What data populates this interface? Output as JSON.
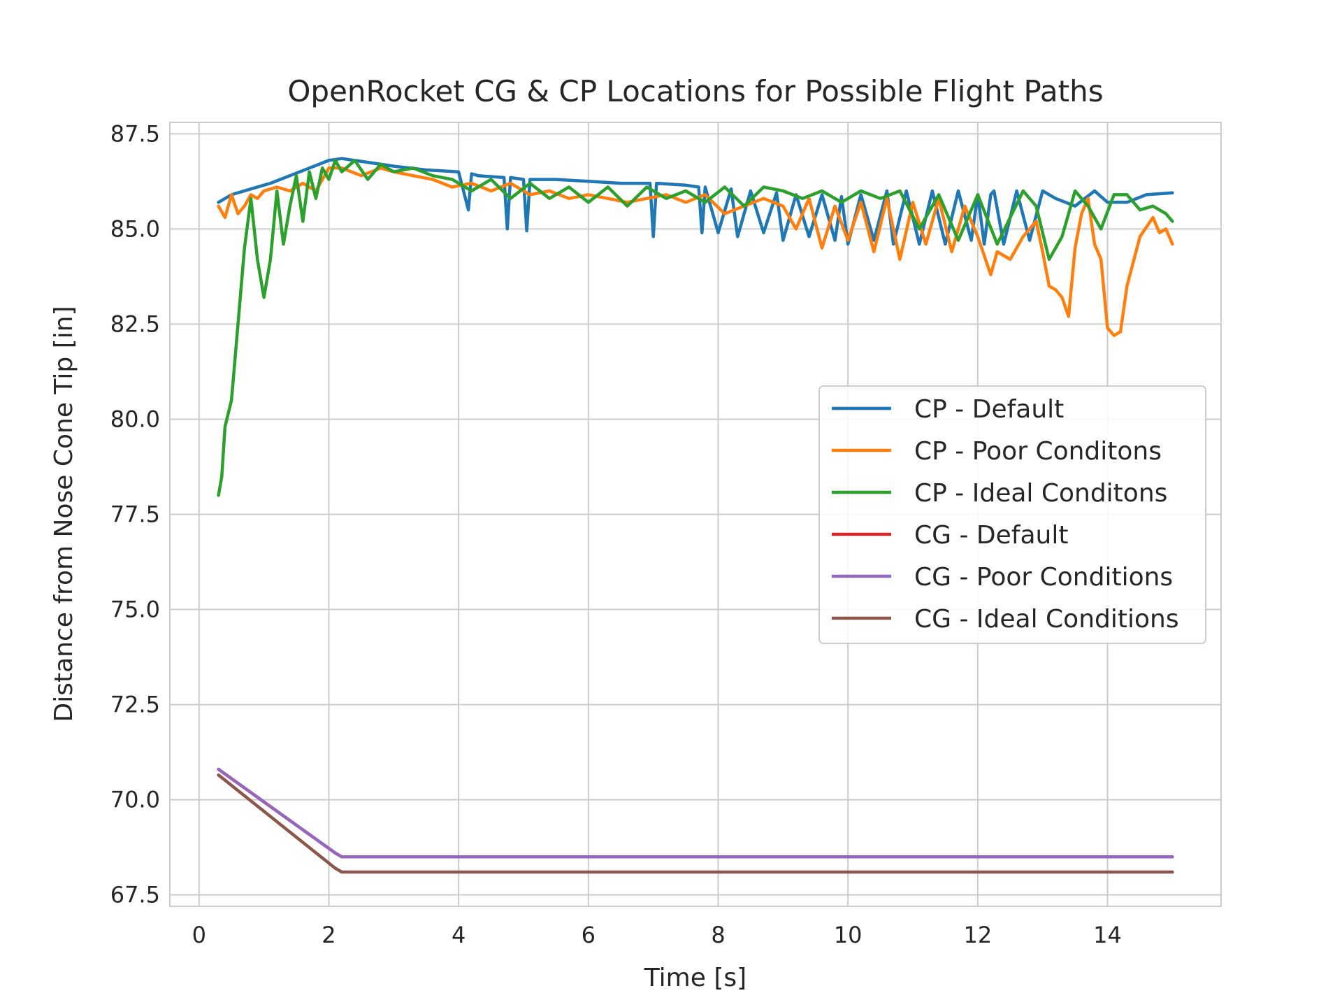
{
  "chart_data": {
    "type": "line",
    "title": "OpenRocket CG & CP Locations for Possible Flight Paths",
    "xlabel": "Time [s]",
    "ylabel": "Distance from Nose Cone Tip [in]",
    "xlim": [
      -0.45,
      15.75
    ],
    "ylim": [
      67.2,
      87.8
    ],
    "xticks": [
      0,
      2,
      4,
      6,
      8,
      10,
      12,
      14
    ],
    "yticks": [
      67.5,
      70.0,
      72.5,
      75.0,
      77.5,
      80.0,
      82.5,
      85.0,
      87.5
    ],
    "xtick_labels": [
      "0",
      "2",
      "4",
      "6",
      "8",
      "10",
      "12",
      "14"
    ],
    "ytick_labels": [
      "67.5",
      "70.0",
      "72.5",
      "75.0",
      "77.5",
      "80.0",
      "82.5",
      "85.0",
      "87.5"
    ],
    "grid": true,
    "legend_position": "center-right",
    "series": [
      {
        "name": "CP - Default",
        "color": "#1f77b4",
        "x": [
          0.3,
          0.5,
          0.8,
          1.1,
          1.4,
          1.7,
          2.0,
          2.2,
          2.6,
          3.0,
          3.5,
          4.0,
          4.15,
          4.2,
          4.3,
          4.7,
          4.75,
          4.8,
          5.0,
          5.05,
          5.1,
          5.5,
          6.0,
          6.5,
          6.95,
          7.0,
          7.05,
          7.5,
          7.7,
          7.75,
          7.8,
          8.0,
          8.2,
          8.3,
          8.5,
          8.7,
          8.9,
          9.0,
          9.2,
          9.4,
          9.6,
          9.8,
          9.9,
          10.0,
          10.2,
          10.4,
          10.6,
          10.7,
          10.9,
          11.1,
          11.3,
          11.5,
          11.7,
          11.9,
          12.0,
          12.1,
          12.2,
          12.25,
          12.4,
          12.6,
          12.8,
          13.0,
          13.2,
          13.5,
          13.8,
          14.0,
          14.3,
          14.6,
          15.0
        ],
        "y": [
          85.7,
          85.9,
          86.05,
          86.2,
          86.4,
          86.6,
          86.8,
          86.85,
          86.75,
          86.65,
          86.55,
          86.5,
          85.5,
          86.45,
          86.4,
          86.35,
          85.0,
          86.35,
          86.3,
          84.95,
          86.3,
          86.3,
          86.25,
          86.2,
          86.2,
          84.8,
          86.2,
          86.15,
          86.1,
          84.9,
          86.1,
          84.9,
          86.05,
          84.8,
          86.0,
          84.9,
          85.95,
          84.7,
          85.9,
          84.8,
          85.9,
          84.7,
          85.85,
          84.6,
          85.9,
          84.7,
          86.0,
          84.6,
          86.0,
          84.6,
          86.0,
          84.6,
          86.0,
          84.7,
          85.9,
          84.6,
          85.9,
          86.0,
          84.6,
          86.0,
          84.7,
          86.0,
          85.8,
          85.6,
          86.0,
          85.7,
          85.7,
          85.9,
          85.95
        ]
      },
      {
        "name": "CP - Poor Conditons",
        "color": "#ff7f0e",
        "x": [
          0.3,
          0.4,
          0.5,
          0.6,
          0.7,
          0.8,
          0.9,
          1.0,
          1.2,
          1.4,
          1.6,
          1.8,
          2.0,
          2.2,
          2.5,
          2.8,
          3.0,
          3.3,
          3.6,
          3.9,
          4.2,
          4.5,
          4.8,
          5.1,
          5.4,
          5.7,
          6.0,
          6.3,
          6.6,
          6.9,
          7.2,
          7.5,
          7.8,
          8.1,
          8.4,
          8.7,
          9.0,
          9.2,
          9.4,
          9.6,
          9.8,
          10.0,
          10.2,
          10.4,
          10.6,
          10.8,
          11.0,
          11.2,
          11.4,
          11.6,
          11.8,
          12.0,
          12.2,
          12.3,
          12.5,
          12.7,
          12.9,
          13.0,
          13.1,
          13.2,
          13.3,
          13.4,
          13.5,
          13.6,
          13.7,
          13.8,
          13.9,
          14.0,
          14.1,
          14.2,
          14.3,
          14.5,
          14.7,
          14.8,
          14.9,
          15.0
        ],
        "y": [
          85.6,
          85.3,
          85.9,
          85.4,
          85.6,
          85.9,
          85.8,
          86.0,
          86.1,
          86.0,
          86.2,
          86.0,
          86.6,
          86.6,
          86.4,
          86.6,
          86.5,
          86.4,
          86.3,
          86.1,
          86.2,
          86.0,
          86.2,
          85.9,
          86.0,
          85.8,
          85.9,
          85.8,
          85.7,
          85.8,
          85.9,
          85.7,
          85.9,
          85.4,
          85.6,
          85.8,
          85.6,
          85.0,
          85.8,
          84.5,
          85.6,
          84.7,
          85.7,
          84.4,
          85.8,
          84.2,
          85.7,
          84.6,
          85.8,
          84.4,
          85.6,
          84.8,
          83.8,
          84.4,
          84.2,
          84.8,
          85.2,
          84.4,
          83.5,
          83.4,
          83.2,
          82.7,
          84.5,
          85.4,
          85.8,
          84.6,
          84.2,
          82.4,
          82.2,
          82.3,
          83.5,
          84.8,
          85.3,
          84.9,
          85.0,
          84.6
        ]
      },
      {
        "name": "CP - Ideal Conditons",
        "color": "#2ca02c",
        "x": [
          0.3,
          0.35,
          0.4,
          0.5,
          0.6,
          0.7,
          0.8,
          0.9,
          1.0,
          1.1,
          1.2,
          1.3,
          1.4,
          1.5,
          1.6,
          1.7,
          1.8,
          1.9,
          2.0,
          2.1,
          2.2,
          2.4,
          2.6,
          2.8,
          3.0,
          3.3,
          3.6,
          3.9,
          4.2,
          4.5,
          4.8,
          5.1,
          5.4,
          5.7,
          6.0,
          6.3,
          6.6,
          6.9,
          7.2,
          7.5,
          7.8,
          8.1,
          8.4,
          8.7,
          9.0,
          9.3,
          9.6,
          9.9,
          10.2,
          10.5,
          10.8,
          11.1,
          11.4,
          11.7,
          12.0,
          12.3,
          12.5,
          12.7,
          12.9,
          13.1,
          13.3,
          13.5,
          13.7,
          13.9,
          14.1,
          14.3,
          14.5,
          14.7,
          14.9,
          15.0
        ],
        "y": [
          78.0,
          78.5,
          79.8,
          80.5,
          82.5,
          84.5,
          85.8,
          84.2,
          83.2,
          84.2,
          86.0,
          84.6,
          85.6,
          86.4,
          85.2,
          86.5,
          85.8,
          86.6,
          86.3,
          86.8,
          86.5,
          86.8,
          86.3,
          86.7,
          86.5,
          86.6,
          86.4,
          86.3,
          86.0,
          86.3,
          85.8,
          86.2,
          85.8,
          86.1,
          85.7,
          86.1,
          85.6,
          86.1,
          85.8,
          86.0,
          85.7,
          86.1,
          85.6,
          86.1,
          86.0,
          85.8,
          86.0,
          85.7,
          86.0,
          85.8,
          86.0,
          85.0,
          85.9,
          84.7,
          85.9,
          84.6,
          85.3,
          86.0,
          85.6,
          84.2,
          84.8,
          86.0,
          85.6,
          85.0,
          85.9,
          85.9,
          85.5,
          85.6,
          85.4,
          85.2
        ]
      },
      {
        "name": "CG - Default",
        "color": "#d62728",
        "x": [
          0.3,
          2.1,
          2.2,
          2.3,
          15.0
        ],
        "y": [
          70.8,
          68.6,
          68.5,
          68.5,
          68.5
        ]
      },
      {
        "name": "CG - Poor Conditions",
        "color": "#9467bd",
        "x": [
          0.3,
          2.1,
          2.2,
          2.3,
          15.0
        ],
        "y": [
          70.8,
          68.6,
          68.5,
          68.5,
          68.5
        ]
      },
      {
        "name": "CG - Ideal Conditions",
        "color": "#8c564b",
        "x": [
          0.3,
          2.1,
          2.2,
          2.3,
          15.0
        ],
        "y": [
          70.65,
          68.2,
          68.1,
          68.1,
          68.1
        ]
      }
    ]
  }
}
